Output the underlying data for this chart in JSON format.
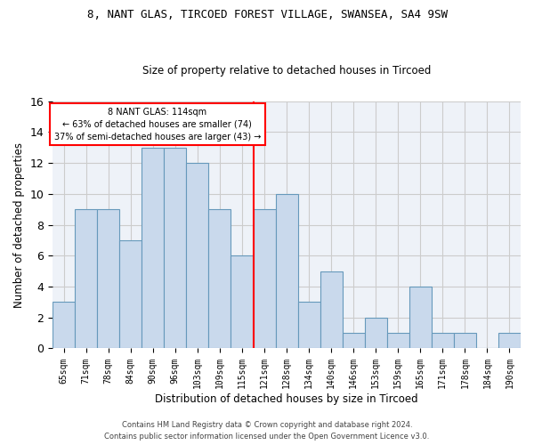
{
  "title1": "8, NANT GLAS, TIRCOED FOREST VILLAGE, SWANSEA, SA4 9SW",
  "title2": "Size of property relative to detached houses in Tircoed",
  "xlabel": "Distribution of detached houses by size in Tircoed",
  "ylabel": "Number of detached properties",
  "categories": [
    "65sqm",
    "71sqm",
    "78sqm",
    "84sqm",
    "90sqm",
    "96sqm",
    "103sqm",
    "109sqm",
    "115sqm",
    "121sqm",
    "128sqm",
    "134sqm",
    "140sqm",
    "146sqm",
    "153sqm",
    "159sqm",
    "165sqm",
    "171sqm",
    "178sqm",
    "184sqm",
    "190sqm"
  ],
  "values": [
    3,
    9,
    9,
    7,
    13,
    13,
    12,
    9,
    6,
    9,
    10,
    3,
    5,
    1,
    2,
    1,
    4,
    1,
    1,
    0,
    1
  ],
  "bar_color": "#c9d9ec",
  "bar_edge_color": "#6699bb",
  "vline_x": 8.5,
  "annotation_line_label": "8 NANT GLAS: 114sqm",
  "annotation_text1": "← 63% of detached houses are smaller (74)",
  "annotation_text2": "37% of semi-detached houses are larger (43) →",
  "annotation_box_color": "white",
  "annotation_box_edge": "red",
  "vline_color": "red",
  "ylim": [
    0,
    16
  ],
  "yticks": [
    0,
    2,
    4,
    6,
    8,
    10,
    12,
    14,
    16
  ],
  "grid_color": "#cccccc",
  "bg_color": "#eef2f8",
  "footer1": "Contains HM Land Registry data © Crown copyright and database right 2024.",
  "footer2": "Contains public sector information licensed under the Open Government Licence v3.0."
}
